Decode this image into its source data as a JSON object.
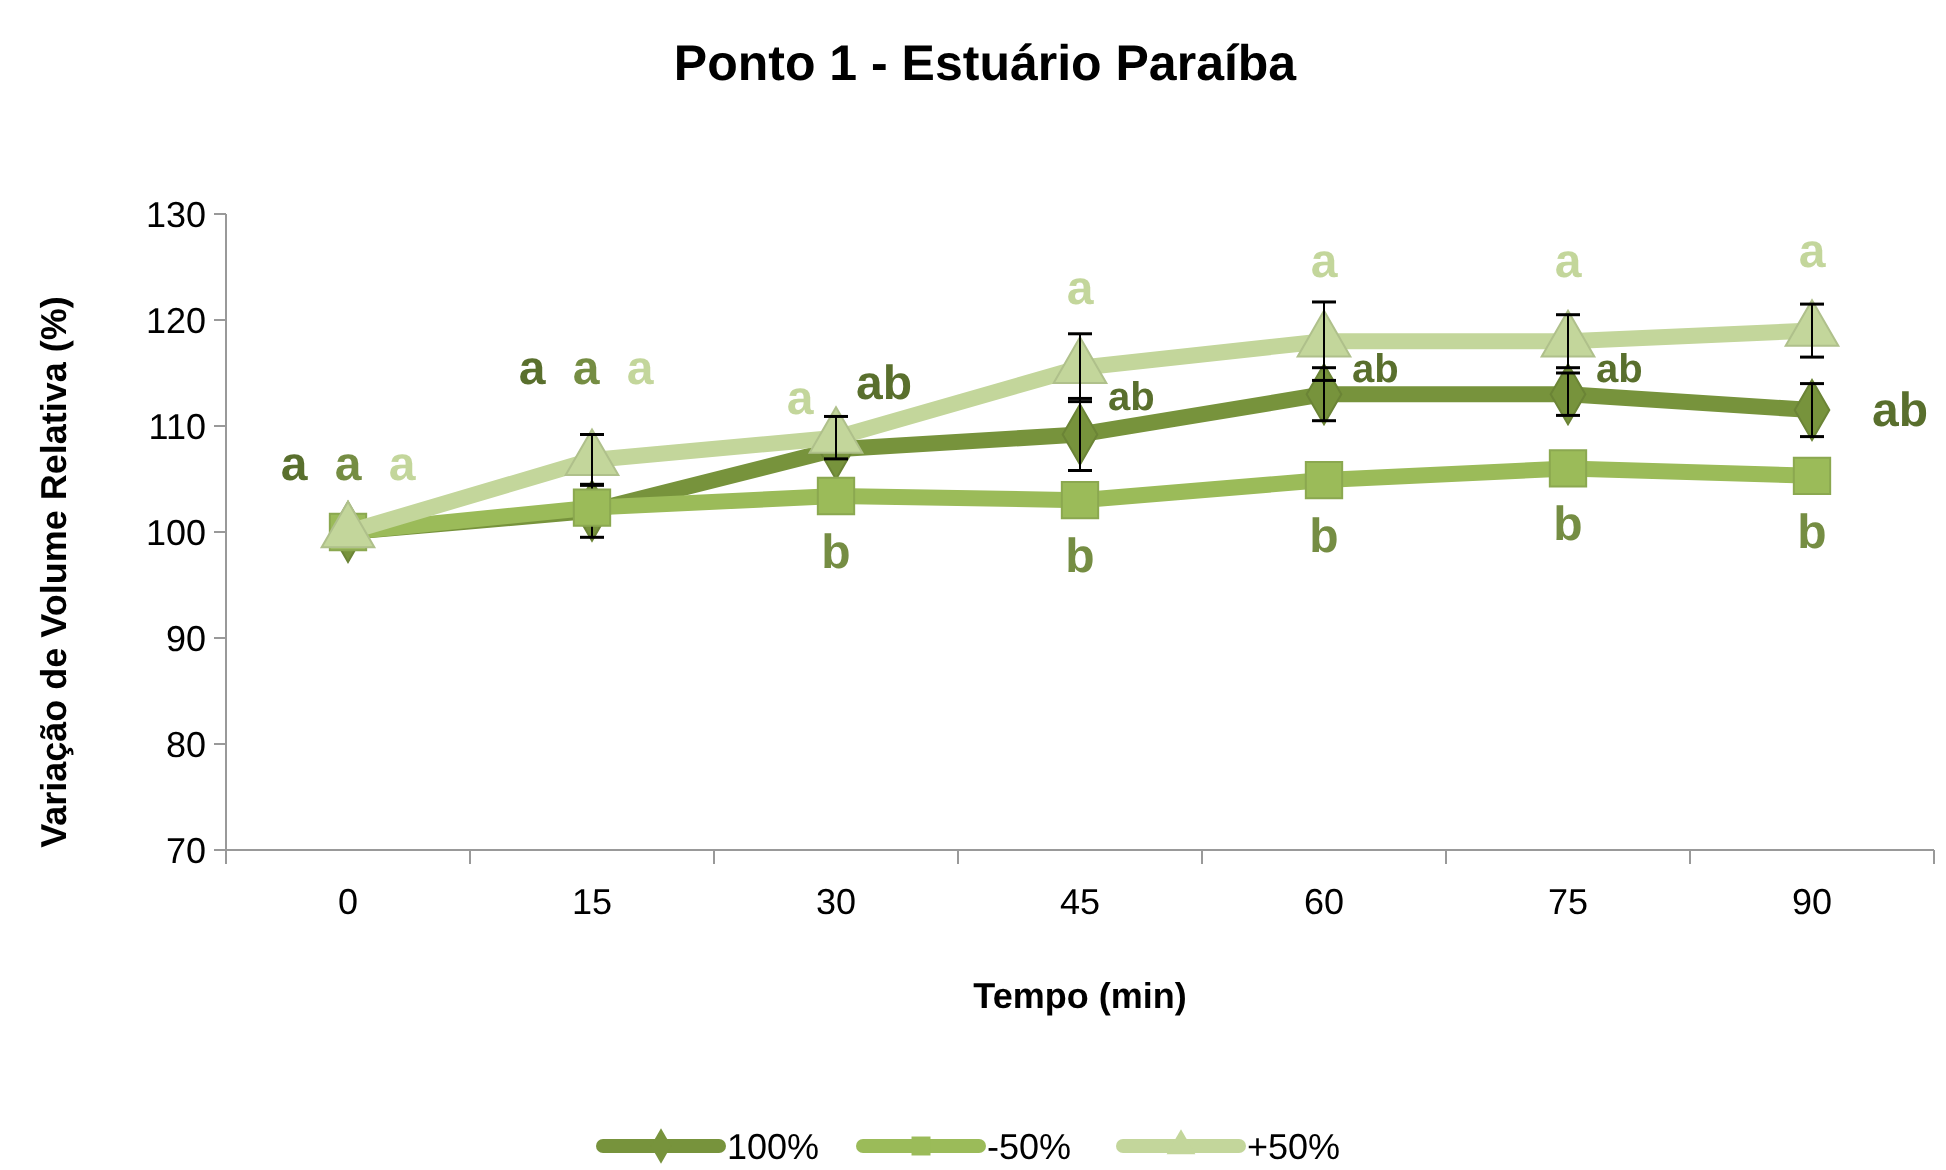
{
  "chart_data": {
    "type": "line",
    "title": "Ponto 1 - Estuário Paraíba",
    "xlabel": "Tempo (min)",
    "ylabel": "Variação de Volume Relativa (%)",
    "categories": [
      "0",
      "15",
      "30",
      "45",
      "60",
      "75",
      "90"
    ],
    "ylim": [
      70,
      130
    ],
    "yticks": [
      70,
      80,
      90,
      100,
      110,
      120,
      130
    ],
    "grid": false,
    "legend": "bottom",
    "line_style": "solid",
    "series": [
      {
        "name": "100%",
        "color": "#77933c",
        "marker": "diamond",
        "values": [
          100,
          102,
          107.8,
          109.2,
          113,
          113,
          111.5
        ],
        "errors": [
          null,
          2.5,
          null,
          3.4,
          2.5,
          2,
          2.5
        ],
        "value_labels": [
          "a",
          "a",
          "ab",
          "ab",
          "ab",
          "ab",
          "ab"
        ]
      },
      {
        "name": "-50%",
        "color": "#9bbb59",
        "marker": "square",
        "values": [
          100,
          102.3,
          103.4,
          103,
          104.9,
          106,
          105.3
        ],
        "value_labels": [
          "a",
          "a",
          "b",
          "b",
          "b",
          "b",
          "b"
        ]
      },
      {
        "name": "+50%",
        "color": "#c3d69b",
        "marker": "triangle",
        "values": [
          100,
          106.8,
          108.9,
          115.5,
          118,
          118,
          119
        ],
        "errors": [
          null,
          2.4,
          2,
          3.2,
          3.7,
          2.5,
          2.5
        ],
        "value_labels": [
          "a",
          "a",
          "a",
          "a",
          "a",
          "a",
          "a"
        ]
      }
    ]
  }
}
